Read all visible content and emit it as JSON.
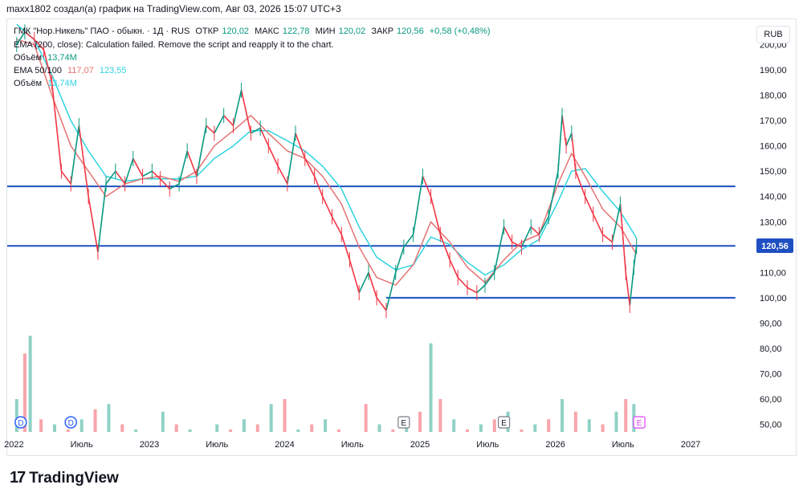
{
  "header": {
    "credit": "maxx1802 создал(а) график на TradingView.com, Авг 03, 2026 15:07 UTC+3"
  },
  "legend": {
    "symbol": "ГМК \"Нор.Никель\" ПАО - обыкн. · 1Д · RUS",
    "open_label": "ОТКР",
    "open": "120,02",
    "high_label": "МАКС",
    "high": "122,78",
    "low_label": "МИН",
    "low": "120,02",
    "close_label": "ЗАКР",
    "close": "120,56",
    "change": "+0,58 (+0,48%)",
    "ema200": "EMA (200, close): Calculation failed. Remove the script and reapply it to the chart.",
    "vol1_label": "Объём",
    "vol1": "13,74M",
    "ema_label": "EMA 50/100",
    "ema50": "117,07",
    "ema100": "123,55",
    "vol2_label": "Объём",
    "vol2": "13,74M"
  },
  "currency": "RUB",
  "price_tag": "120,56",
  "footer": {
    "logo_text": "TradingView"
  },
  "colors": {
    "up": "#089981",
    "down": "#f23645",
    "ema50": "#e57373",
    "ema100": "#2ed3e0",
    "hline": "#1e4fc2",
    "tag": "#1e4fc2"
  },
  "chart_data": {
    "type": "line",
    "title": "",
    "xlabel": "",
    "ylabel": "",
    "y_ticks": [
      "200,00",
      "190,00",
      "180,00",
      "170,00",
      "160,00",
      "150,00",
      "140,00",
      "130,00",
      "120,00",
      "110,00",
      "100,00",
      "90,00",
      "80,00",
      "70,00",
      "60,00",
      "50,00"
    ],
    "y_tick_values": [
      200,
      190,
      180,
      170,
      160,
      150,
      140,
      130,
      120,
      110,
      100,
      90,
      80,
      70,
      60,
      50
    ],
    "ylim": [
      47,
      210
    ],
    "x_ticks": [
      {
        "label": "2022",
        "t": 2022.0
      },
      {
        "label": "Июль",
        "t": 2022.5
      },
      {
        "label": "2023",
        "t": 2023.0
      },
      {
        "label": "Июль",
        "t": 2023.5
      },
      {
        "label": "2024",
        "t": 2024.0
      },
      {
        "label": "Июль",
        "t": 2024.5
      },
      {
        "label": "2025",
        "t": 2025.0
      },
      {
        "label": "Июль",
        "t": 2025.5
      },
      {
        "label": "2026",
        "t": 2026.0
      },
      {
        "label": "Июль",
        "t": 2026.5
      },
      {
        "label": "2027",
        "t": 2027.0
      }
    ],
    "xlim": [
      2021.95,
      2027.45
    ],
    "horizontal_lines": [
      {
        "value": 144,
        "from": 2021.95,
        "to": 2027.33
      },
      {
        "value": 120.5,
        "from": 2021.95,
        "to": 2027.33
      },
      {
        "value": 100,
        "from": 2024.75,
        "to": 2027.33
      }
    ],
    "price_series": {
      "name": "",
      "x": [
        2022.02,
        2022.08,
        2022.15,
        2022.22,
        2022.28,
        2022.35,
        2022.42,
        2022.48,
        2022.55,
        2022.62,
        2022.68,
        2022.75,
        2022.82,
        2022.88,
        2022.95,
        2023.02,
        2023.08,
        2023.15,
        2023.22,
        2023.28,
        2023.35,
        2023.42,
        2023.48,
        2023.55,
        2023.62,
        2023.68,
        2023.75,
        2023.82,
        2023.88,
        2023.95,
        2024.02,
        2024.08,
        2024.15,
        2024.22,
        2024.28,
        2024.35,
        2024.42,
        2024.48,
        2024.55,
        2024.62,
        2024.68,
        2024.75,
        2024.82,
        2024.88,
        2024.95,
        2025.02,
        2025.08,
        2025.15,
        2025.22,
        2025.28,
        2025.35,
        2025.42,
        2025.48,
        2025.55,
        2025.62,
        2025.68,
        2025.75,
        2025.82,
        2025.88,
        2025.95,
        2026.02,
        2026.05,
        2026.08,
        2026.12,
        2026.15,
        2026.22,
        2026.28,
        2026.35,
        2026.42,
        2026.48,
        2026.52,
        2026.55,
        2026.58,
        2026.6
      ],
      "y": [
        200,
        205,
        202,
        198,
        185,
        150,
        145,
        168,
        140,
        118,
        145,
        150,
        145,
        155,
        148,
        150,
        147,
        143,
        145,
        158,
        148,
        168,
        165,
        172,
        168,
        182,
        165,
        167,
        160,
        152,
        145,
        165,
        155,
        148,
        140,
        132,
        125,
        115,
        102,
        110,
        100,
        95,
        110,
        120,
        125,
        148,
        140,
        125,
        115,
        108,
        104,
        102,
        105,
        110,
        128,
        122,
        120,
        128,
        125,
        132,
        150,
        172,
        160,
        165,
        150,
        140,
        133,
        125,
        122,
        137,
        110,
        97,
        112,
        120.56
      ]
    },
    "ema50": {
      "name": "EMA 50",
      "x": [
        2022.02,
        2022.15,
        2022.28,
        2022.42,
        2022.55,
        2022.68,
        2022.82,
        2022.95,
        2023.08,
        2023.22,
        2023.35,
        2023.48,
        2023.62,
        2023.75,
        2023.88,
        2024.02,
        2024.15,
        2024.28,
        2024.42,
        2024.55,
        2024.68,
        2024.82,
        2024.95,
        2025.08,
        2025.22,
        2025.35,
        2025.48,
        2025.62,
        2025.75,
        2025.88,
        2026.02,
        2026.12,
        2026.22,
        2026.35,
        2026.48,
        2026.6
      ],
      "y": [
        202,
        200,
        180,
        160,
        150,
        140,
        145,
        147,
        148,
        146,
        150,
        160,
        166,
        172,
        165,
        158,
        155,
        148,
        137,
        120,
        108,
        105,
        113,
        130,
        122,
        112,
        106,
        115,
        122,
        125,
        145,
        157,
        148,
        135,
        128,
        117.07
      ]
    },
    "ema100": {
      "name": "EMA 100",
      "x": [
        2022.02,
        2022.15,
        2022.28,
        2022.42,
        2022.55,
        2022.68,
        2022.82,
        2022.95,
        2023.08,
        2023.22,
        2023.35,
        2023.48,
        2023.62,
        2023.75,
        2023.88,
        2024.02,
        2024.15,
        2024.28,
        2024.42,
        2024.55,
        2024.68,
        2024.82,
        2024.95,
        2025.08,
        2025.22,
        2025.35,
        2025.48,
        2025.62,
        2025.75,
        2025.88,
        2026.02,
        2026.12,
        2026.22,
        2026.35,
        2026.48,
        2026.6
      ],
      "y": [
        208,
        202,
        188,
        170,
        158,
        148,
        146,
        147,
        147,
        147,
        148,
        155,
        160,
        166,
        166,
        162,
        158,
        152,
        143,
        128,
        116,
        111,
        113,
        124,
        121,
        114,
        109,
        113,
        119,
        123,
        138,
        150,
        151,
        142,
        134,
        123.55
      ]
    },
    "volume": {
      "name": "Объём",
      "x": [
        2022.02,
        2022.08,
        2022.12,
        2022.2,
        2022.3,
        2022.4,
        2022.5,
        2022.6,
        2022.7,
        2022.8,
        2022.9,
        2023.0,
        2023.1,
        2023.2,
        2023.3,
        2023.4,
        2023.5,
        2023.6,
        2023.7,
        2023.8,
        2023.9,
        2024.0,
        2024.1,
        2024.2,
        2024.3,
        2024.4,
        2024.5,
        2024.6,
        2024.7,
        2024.8,
        2024.9,
        2025.0,
        2025.08,
        2025.15,
        2025.25,
        2025.35,
        2025.45,
        2025.55,
        2025.65,
        2025.75,
        2025.85,
        2025.95,
        2026.05,
        2026.15,
        2026.25,
        2026.35,
        2026.45,
        2026.52,
        2026.58
      ],
      "y": [
        60,
        78,
        85,
        52,
        50,
        48,
        52,
        56,
        58,
        50,
        48,
        46,
        55,
        50,
        48,
        45,
        50,
        48,
        52,
        50,
        58,
        60,
        48,
        50,
        52,
        48,
        46,
        58,
        50,
        48,
        52,
        55,
        82,
        60,
        52,
        48,
        50,
        52,
        55,
        48,
        50,
        52,
        60,
        55,
        52,
        50,
        55,
        60,
        58
      ]
    },
    "events": [
      {
        "label": "D",
        "t": 2022.05
      },
      {
        "label": "D",
        "t": 2022.42
      },
      {
        "label": "E",
        "t": 2024.88
      },
      {
        "label": "E",
        "t": 2025.62
      },
      {
        "label": "E",
        "t": 2026.62
      }
    ]
  }
}
